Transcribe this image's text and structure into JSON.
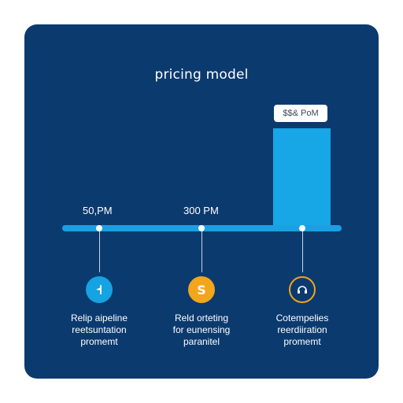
{
  "title": "pricing model",
  "colors": {
    "background": "#0b3a6f",
    "timeline": "#19a0e3",
    "bar": "#17a7e6",
    "step1_icon": "#15a3e2",
    "step2_icon": "#f3a51b",
    "step3_icon": "#0b3a6f"
  },
  "highlight": {
    "label": "$$& PoM"
  },
  "steps": [
    {
      "price": "50,PM",
      "icon": "flag-icon",
      "caption": [
        "Relip aipeline",
        "reetsuntation",
        "promemt"
      ]
    },
    {
      "price": "300 PM",
      "icon": "dollar-icon",
      "glyph": "S",
      "caption": [
        "Reld orteting",
        "for eunensing",
        "paranitel"
      ]
    },
    {
      "price": "",
      "icon": "headset-icon",
      "caption": [
        "Cotempelies",
        "reerdiiration",
        "promemt"
      ]
    }
  ]
}
